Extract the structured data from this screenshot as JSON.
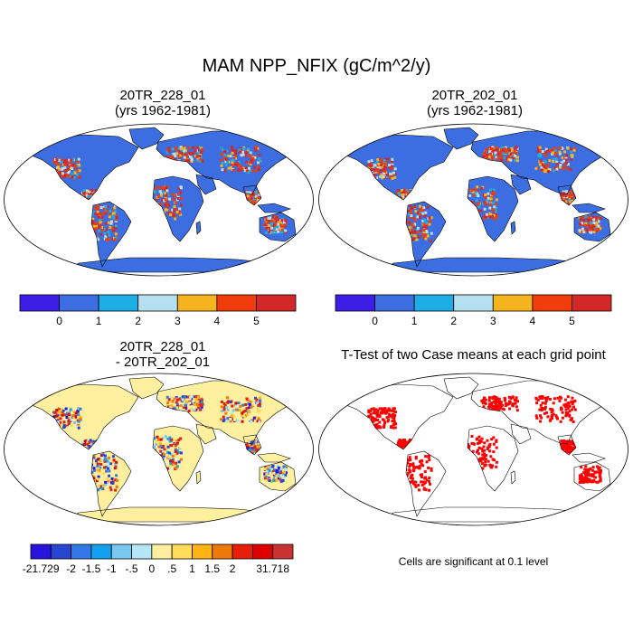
{
  "title": "MAM NPP_NFIX (gC/m^2/y)",
  "panels": [
    {
      "title_line1": "20TR_228_01",
      "title_line2": "(yrs 1962-1981)"
    },
    {
      "title_line1": "20TR_202_01",
      "title_line2": "(yrs 1962-1981)"
    },
    {
      "title_line1": "20TR_228_01",
      "title_line2": "- 20TR_202_01"
    },
    {
      "title_line1": "T-Test of two Case means at each grid point",
      "title_line2": ""
    }
  ],
  "colorbar_top": {
    "colors": [
      "#3c1ee6",
      "#3c6ee1",
      "#1eaee6",
      "#b4e0f0",
      "#f5b41e",
      "#f03c0a",
      "#d22828"
    ],
    "labels": [
      "0",
      "1",
      "2",
      "3",
      "4",
      "5"
    ]
  },
  "colorbar_diff": {
    "colors": [
      "#2814dc",
      "#2846d2",
      "#3278e6",
      "#14a0f0",
      "#78c8f0",
      "#b4e6f5",
      "#fff0a0",
      "#ffdc5a",
      "#ffb414",
      "#f0780a",
      "#e61e0a",
      "#dc0000",
      "#c83232"
    ],
    "labels": [
      "-21.729",
      "-2",
      "-1.5",
      "-1",
      "-.5",
      "0",
      ".5",
      "1",
      "1.5",
      "2",
      "31.718"
    ]
  },
  "significance_note": "Cells are significant at 0.1 level",
  "map_colors": {
    "ocean": "#ffffff",
    "land_base": "#3c6ee1",
    "diff_base": "#fff0a0",
    "sig": "#ff0000",
    "coast": "#000000"
  }
}
